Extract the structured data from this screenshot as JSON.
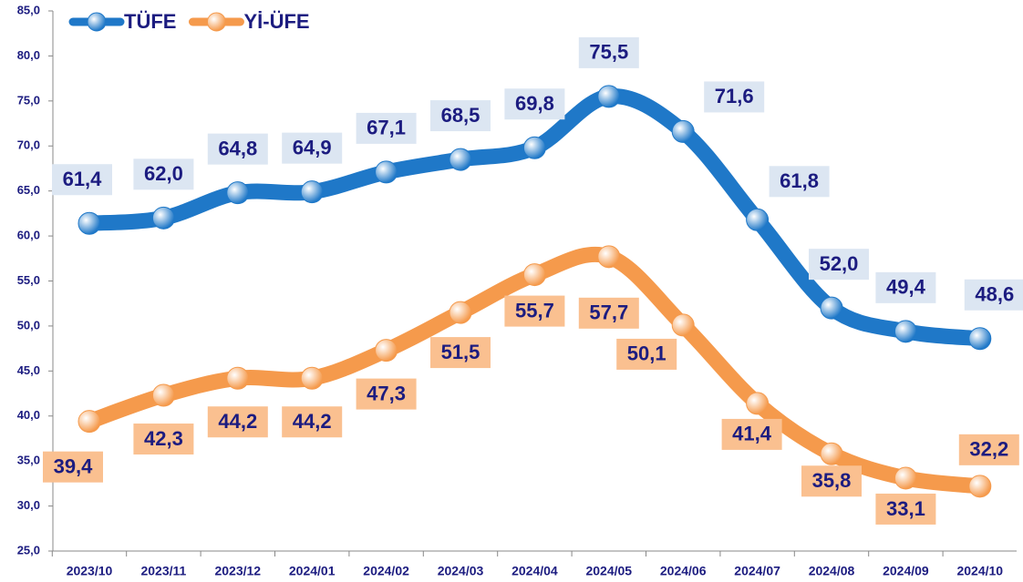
{
  "chart_data": {
    "type": "line",
    "categories": [
      "2023/10",
      "2023/11",
      "2023/12",
      "2024/01",
      "2024/02",
      "2024/03",
      "2024/04",
      "2024/05",
      "2024/06",
      "2024/07",
      "2024/08",
      "2024/09",
      "2024/10"
    ],
    "series": [
      {
        "name": "TÜFE",
        "color": "#1f78c8",
        "label_bg": "#dce6f2",
        "values": [
          61.4,
          62.0,
          64.8,
          64.9,
          67.1,
          68.5,
          69.8,
          75.5,
          71.6,
          61.8,
          52.0,
          49.4,
          48.6
        ],
        "value_labels": [
          "61,4",
          "62,0",
          "64,8",
          "64,9",
          "67,1",
          "68,5",
          "69,8",
          "75,5",
          "71,6",
          "61,8",
          "52,0",
          "49,4",
          "48,6"
        ]
      },
      {
        "name": "Yİ-ÜFE",
        "color": "#f59a4c",
        "label_bg": "#fac090",
        "values": [
          39.4,
          42.3,
          44.2,
          44.2,
          47.3,
          51.5,
          55.7,
          57.7,
          50.1,
          41.4,
          35.8,
          33.1,
          32.2
        ],
        "value_labels": [
          "39,4",
          "42,3",
          "44,2",
          "44,2",
          "47,3",
          "51,5",
          "55,7",
          "57,7",
          "50,1",
          "41,4",
          "35,8",
          "33,1",
          "32,2"
        ]
      }
    ],
    "ylim": [
      25,
      85
    ],
    "yticks": [
      {
        "value": 25,
        "label": "25,0"
      },
      {
        "value": 30,
        "label": "30,0"
      },
      {
        "value": 35,
        "label": "35,0"
      },
      {
        "value": 40,
        "label": "40,0"
      },
      {
        "value": 45,
        "label": "45,0"
      },
      {
        "value": 50,
        "label": "50,0"
      },
      {
        "value": 55,
        "label": "55,0"
      },
      {
        "value": 60,
        "label": "60,0"
      },
      {
        "value": 65,
        "label": "65,0"
      },
      {
        "value": 70,
        "label": "70,0"
      },
      {
        "value": 75,
        "label": "75,0"
      },
      {
        "value": 80,
        "label": "80,0"
      },
      {
        "value": 85,
        "label": "85,0"
      }
    ],
    "legend": "upper left",
    "label_color": "#1c1c80"
  }
}
